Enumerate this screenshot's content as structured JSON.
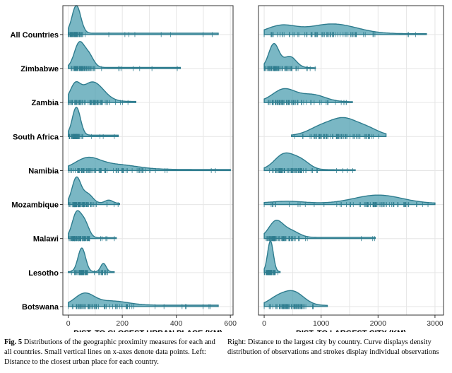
{
  "chart_data": [
    {
      "type": "density-ridgeline",
      "xlabel": "DIST. TO CLOSEST URBAN PLACE (KM)",
      "ylabel": "",
      "xlim": [
        -20,
        610
      ],
      "xticks": [
        0,
        200,
        400,
        600
      ],
      "grid": true,
      "categories": [
        "All Countries",
        "Zimbabwe",
        "Zambia",
        "South Africa",
        "Namibia",
        "Mozambique",
        "Malawi",
        "Lesotho",
        "Botswana"
      ],
      "series": [
        {
          "name": "All Countries",
          "range": [
            0,
            555
          ],
          "peaks": [
            [
              30,
              1.0,
              16
            ]
          ],
          "tail": 0.05
        },
        {
          "name": "Zimbabwe",
          "range": [
            0,
            415
          ],
          "peaks": [
            [
              40,
              0.85,
              18
            ],
            [
              75,
              0.45,
              18
            ]
          ],
          "tail": 0.04
        },
        {
          "name": "Zambia",
          "range": [
            0,
            250
          ],
          "peaks": [
            [
              25,
              0.5,
              18
            ],
            [
              90,
              0.7,
              40
            ]
          ],
          "tail": 0.04
        },
        {
          "name": "South Africa",
          "range": [
            0,
            185
          ],
          "peaks": [
            [
              30,
              1.0,
              15
            ]
          ],
          "tail": 0.05
        },
        {
          "name": "Namibia",
          "range": [
            0,
            600
          ],
          "peaks": [
            [
              70,
              0.35,
              45
            ],
            [
              170,
              0.18,
              80
            ]
          ],
          "tail": 0.04
        },
        {
          "name": "Mozambique",
          "range": [
            0,
            190
          ],
          "peaks": [
            [
              30,
              0.9,
              16
            ],
            [
              70,
              0.35,
              20
            ],
            [
              150,
              0.12,
              15
            ]
          ],
          "tail": 0.04
        },
        {
          "name": "Malawi",
          "range": [
            0,
            178
          ],
          "peaks": [
            [
              30,
              0.85,
              16
            ],
            [
              60,
              0.55,
              16
            ]
          ],
          "tail": 0.03
        },
        {
          "name": "Lesotho",
          "range": [
            0,
            170
          ],
          "peaks": [
            [
              50,
              0.85,
              14
            ],
            [
              130,
              0.3,
              10
            ]
          ],
          "tail": 0.03
        },
        {
          "name": "Botswana",
          "range": [
            0,
            555
          ],
          "peaks": [
            [
              60,
              0.4,
              35
            ],
            [
              160,
              0.15,
              60
            ]
          ],
          "tail": 0.05
        }
      ]
    },
    {
      "type": "density-ridgeline",
      "xlabel": "DIST. TO LARGEST CITY (KM)",
      "ylabel": "",
      "xlim": [
        -100,
        3150
      ],
      "xticks": [
        0,
        1000,
        2000,
        3000
      ],
      "grid": true,
      "categories": [
        "All Countries",
        "Zimbabwe",
        "Zambia",
        "South Africa",
        "Namibia",
        "Mozambique",
        "Malawi",
        "Lesotho",
        "Botswana"
      ],
      "series": [
        {
          "name": "All Countries",
          "range": [
            0,
            2850
          ],
          "peaks": [
            [
              300,
              0.28,
              250
            ],
            [
              1200,
              0.35,
              420
            ]
          ],
          "tail": 0.03
        },
        {
          "name": "Zimbabwe",
          "range": [
            0,
            900
          ],
          "peaks": [
            [
              170,
              0.85,
              90
            ],
            [
              450,
              0.4,
              110
            ]
          ],
          "tail": 0.03
        },
        {
          "name": "Zambia",
          "range": [
            0,
            1550
          ],
          "peaks": [
            [
              350,
              0.45,
              200
            ],
            [
              850,
              0.25,
              220
            ]
          ],
          "tail": 0.03
        },
        {
          "name": "South Africa",
          "range": [
            480,
            2140
          ],
          "peaks": [
            [
              1000,
              0.3,
              220
            ],
            [
              1400,
              0.55,
              220
            ],
            [
              1800,
              0.25,
              200
            ]
          ],
          "tail": 0.04
        },
        {
          "name": "Namibia",
          "range": [
            0,
            1600
          ],
          "peaks": [
            [
              350,
              0.55,
              170
            ],
            [
              650,
              0.3,
              150
            ]
          ],
          "tail": 0.03
        },
        {
          "name": "Mozambique",
          "range": [
            0,
            3000
          ],
          "peaks": [
            [
              400,
              0.08,
              300
            ],
            [
              2000,
              0.3,
              420
            ]
          ],
          "tail": 0.04
        },
        {
          "name": "Malawi",
          "range": [
            0,
            1950
          ],
          "peaks": [
            [
              200,
              0.55,
              120
            ],
            [
              450,
              0.25,
              150
            ]
          ],
          "tail": 0.04
        },
        {
          "name": "Lesotho",
          "range": [
            0,
            280
          ],
          "peaks": [
            [
              110,
              1.1,
              50
            ]
          ],
          "tail": 0.03
        },
        {
          "name": "Botswana",
          "range": [
            0,
            1110
          ],
          "peaks": [
            [
              200,
              0.2,
              150
            ],
            [
              500,
              0.5,
              190
            ]
          ],
          "tail": 0.04
        }
      ]
    }
  ],
  "colors": {
    "fill": "#4e9fb0",
    "stroke": "#2e7c8e",
    "grid": "#e6e6e6",
    "panel_border": "#333333"
  },
  "caption": {
    "left_label": "Fig. 5",
    "left_text": "Distributions of the geographic proximity measures for each and all countries. Small vertical lines on x-axes denote data points. Left: Distance to the closest urban place for each country.",
    "right_text": "Right: Distance to the largest city by country. Curve displays density distribution of observations and strokes display individual observations"
  }
}
